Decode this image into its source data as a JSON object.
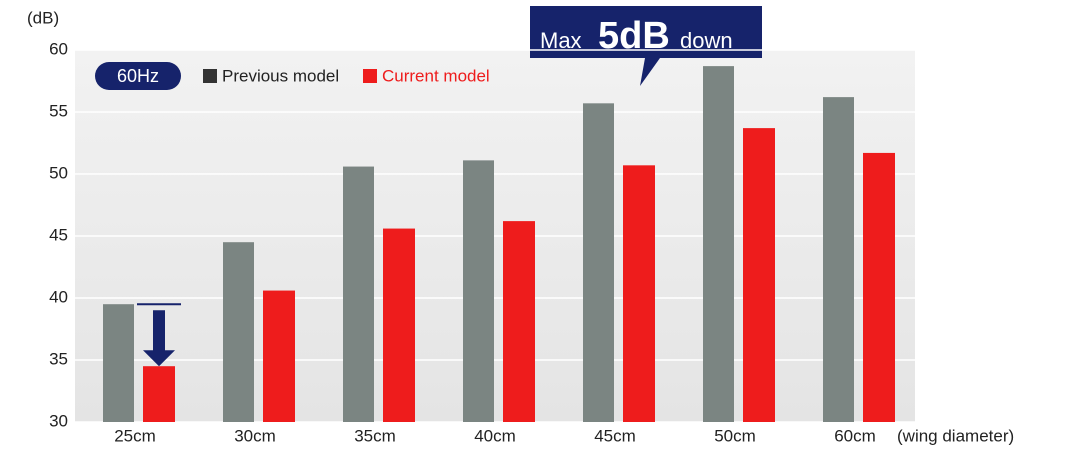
{
  "chart_data": {
    "type": "bar",
    "y_unit": "(dB)",
    "x_label": "(wing diameter)",
    "badge": "60Hz",
    "annotation": {
      "prefix": "Max",
      "emphasis": "5dB",
      "suffix": "down"
    },
    "categories": [
      "25cm",
      "30cm",
      "35cm",
      "40cm",
      "45cm",
      "50cm",
      "60cm"
    ],
    "series": [
      {
        "name": "Previous model",
        "color": "#7b8582",
        "values": [
          39.5,
          44.5,
          50.6,
          51.1,
          55.7,
          58.7,
          56.2
        ]
      },
      {
        "name": "Current model",
        "color": "#ee1c1c",
        "values": [
          34.5,
          40.6,
          45.6,
          46.2,
          50.7,
          53.7,
          51.7
        ]
      }
    ],
    "ylim": [
      30,
      60
    ],
    "yticks": [
      30,
      35,
      40,
      45,
      50,
      55,
      60
    ],
    "grid": true
  }
}
